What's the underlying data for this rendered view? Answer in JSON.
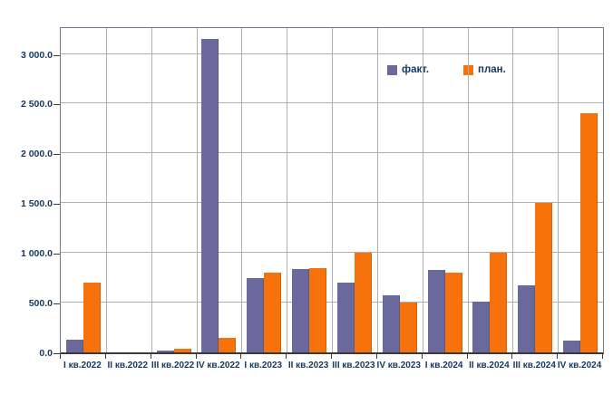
{
  "chart_data": {
    "type": "bar",
    "title": "",
    "xlabel": "",
    "ylabel": "",
    "categories": [
      "I кв.2022",
      "II кв.2022",
      "III кв.2022",
      "IV кв.2022",
      "I кв.2023",
      "II кв.2023",
      "III кв.2023",
      "IV кв.2023",
      "I кв.2024",
      "II кв.2024",
      "III кв.2024",
      "IV кв.2024"
    ],
    "series": [
      {
        "name": "факт.",
        "color": "#69699E",
        "values": [
          130,
          0,
          20,
          3150,
          750,
          840,
          700,
          570,
          830,
          510,
          670,
          120
        ]
      },
      {
        "name": "план.",
        "color": "#F8720C",
        "values": [
          700,
          0,
          40,
          150,
          800,
          850,
          1000,
          500,
          800,
          1000,
          1500,
          2400
        ]
      }
    ],
    "ylim": [
      0,
      3260
    ],
    "yticks": [
      {
        "v": 0,
        "label": "0.0"
      },
      {
        "v": 500,
        "label": "500.0"
      },
      {
        "v": 1000,
        "label": "1 000.0"
      },
      {
        "v": 1500,
        "label": "1 500.0"
      },
      {
        "v": 2000,
        "label": "2 000.0"
      },
      {
        "v": 2500,
        "label": "2 500.0"
      },
      {
        "v": 3000,
        "label": "3 000.0"
      }
    ],
    "grid": true,
    "legend_position": "inside-top-center-right"
  },
  "legend": {
    "items": [
      {
        "label": "факт.",
        "color": "#69699E"
      },
      {
        "label": "план.",
        "color": "#F8720C"
      }
    ]
  },
  "colors": {
    "fact_bar": "#69699E",
    "plan_bar": "#F8720C",
    "axis_text": "#17375D",
    "gridline": "#AFAFAF",
    "plot_border": "#6E7B8A",
    "axis_line": "#3A3A3A",
    "background": "#FFFFFF"
  }
}
